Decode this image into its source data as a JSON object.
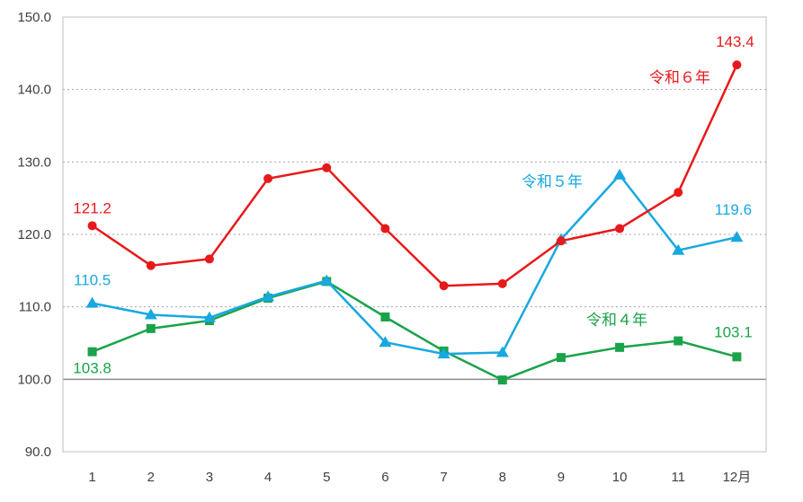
{
  "chart_data": {
    "type": "line",
    "x_tick_labels": [
      "1",
      "2",
      "3",
      "4",
      "5",
      "6",
      "7",
      "8",
      "9",
      "10",
      "11",
      "12月"
    ],
    "ylim": [
      90.0,
      150.0
    ],
    "y_ticks": [
      "90.0",
      "100.0",
      "110.0",
      "120.0",
      "130.0",
      "140.0",
      "150.0"
    ],
    "reference_line": 100.0,
    "grid": "horizontal dotted",
    "series": [
      {
        "name": "令和４年",
        "color": "#1aa34a",
        "marker": "square",
        "values": [
          103.8,
          107.0,
          108.1,
          111.2,
          113.5,
          108.6,
          103.9,
          99.9,
          103.0,
          104.4,
          105.3,
          103.1
        ],
        "data_labels": [
          {
            "index": 0,
            "text": "103.8"
          },
          {
            "index": 11,
            "text": "103.1"
          }
        ]
      },
      {
        "name": "令和５年",
        "color": "#18a8e0",
        "marker": "triangle",
        "values": [
          110.5,
          108.9,
          108.5,
          111.4,
          113.6,
          105.1,
          103.5,
          103.7,
          119.3,
          128.2,
          117.8,
          119.6
        ],
        "data_labels": [
          {
            "index": 0,
            "text": "110.5"
          },
          {
            "index": 11,
            "text": "119.6"
          }
        ]
      },
      {
        "name": "令和６年",
        "color": "#e8191b",
        "marker": "circle",
        "values": [
          121.2,
          115.7,
          116.6,
          127.7,
          129.2,
          120.8,
          112.9,
          113.2,
          119.1,
          120.8,
          125.8,
          143.4
        ],
        "data_labels": [
          {
            "index": 0,
            "text": "121.2"
          },
          {
            "index": 11,
            "text": "143.4"
          }
        ]
      }
    ]
  }
}
